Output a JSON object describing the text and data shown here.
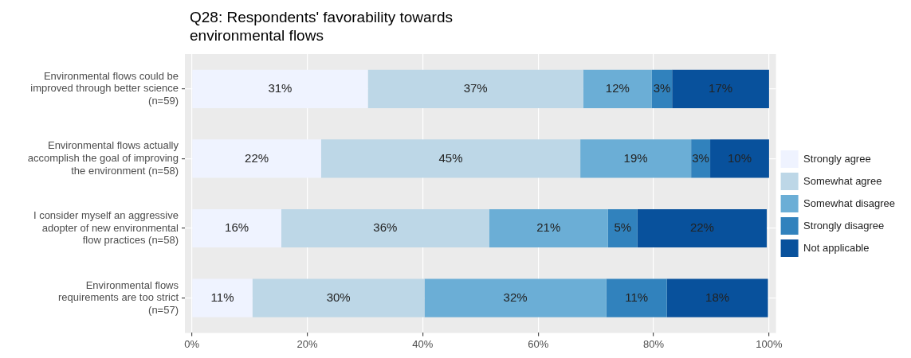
{
  "chart_data": {
    "type": "bar",
    "orientation": "horizontal",
    "stacked": true,
    "title": "Q28: Respondents' favorability towards environmental flows",
    "categories": [
      "Environmental flows could be improved through better science (n=59)",
      "Environmental flows actually accomplish the goal of improving the environment (n=58)",
      "I consider myself an aggressive adopter of new environmental flow practices (n=58)",
      "Environmental flows requirements are too strict (n=57)"
    ],
    "series": [
      {
        "name": "Strongly agree",
        "color": "#eff3ff",
        "values": [
          30.5,
          22.4,
          15.5,
          10.5
        ],
        "value_labels": [
          "31%",
          "22%",
          "16%",
          "11%"
        ]
      },
      {
        "name": "Somewhat agree",
        "color": "#bdd7e7",
        "values": [
          37.3,
          44.9,
          36.0,
          29.8
        ],
        "value_labels": [
          "37%",
          "45%",
          "36%",
          "30%"
        ]
      },
      {
        "name": "Somewhat disagree",
        "color": "#6baed6",
        "values": [
          11.9,
          19.2,
          20.6,
          31.5
        ],
        "value_labels": [
          "12%",
          "19%",
          "21%",
          "32%"
        ]
      },
      {
        "name": "Strongly disagree",
        "color": "#3182bd",
        "values": [
          3.5,
          3.3,
          5.1,
          10.5
        ],
        "value_labels": [
          "3%",
          "3%",
          "5%",
          "11%"
        ]
      },
      {
        "name": "Not applicable",
        "color": "#08519c",
        "values": [
          16.8,
          10.2,
          22.4,
          17.5
        ],
        "value_labels": [
          "17%",
          "10%",
          "22%",
          "18%"
        ]
      }
    ],
    "xlim": [
      -1.2,
      101.2
    ],
    "xticks": [
      {
        "value": 0,
        "label": "0%"
      },
      {
        "value": 20,
        "label": "20%"
      },
      {
        "value": 40,
        "label": "40%"
      },
      {
        "value": 60,
        "label": "60%"
      },
      {
        "value": 80,
        "label": "80%"
      },
      {
        "value": 100,
        "label": "100%"
      }
    ],
    "grid": true,
    "legend": "right"
  }
}
